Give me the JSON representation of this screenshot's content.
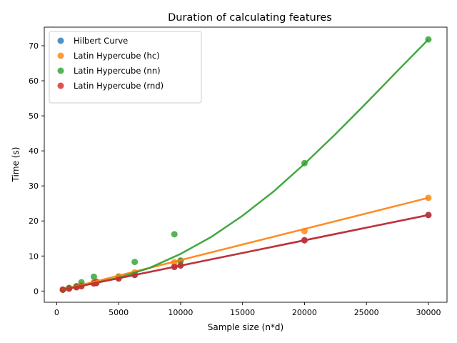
{
  "colors": {
    "hilbert": "#1f77b4",
    "hc": "#ff7f0e",
    "nn": "#2ca02c",
    "rnd": "#d62728"
  },
  "chart_data": {
    "type": "scatter",
    "title": "Duration of calculating features",
    "xlabel": "Sample size (n*d)",
    "ylabel": "Time (s)",
    "xlim": [
      -1000,
      31500
    ],
    "ylim": [
      -3.2,
      75.3
    ],
    "xticks": [
      0,
      5000,
      10000,
      15000,
      20000,
      25000,
      30000
    ],
    "yticks": [
      0,
      10,
      20,
      30,
      40,
      50,
      60,
      70
    ],
    "grid": false,
    "legend_position": "top-left",
    "series": [
      {
        "name": "Hilbert Curve",
        "color_key": "hilbert",
        "x": [
          500,
          1000,
          1600,
          2000,
          3000,
          3200,
          5000,
          6300,
          9500,
          10000,
          20000,
          30000
        ],
        "y": [
          0.4,
          0.7,
          1.1,
          1.4,
          2.2,
          2.3,
          3.6,
          4.6,
          6.9,
          7.3,
          14.5,
          21.7
        ],
        "fit": [
          [
            500,
            0.4
          ],
          [
            30000,
            21.7
          ]
        ]
      },
      {
        "name": "Latin Hypercube (hc)",
        "color_key": "hc",
        "x": [
          500,
          1000,
          1600,
          2000,
          3000,
          3200,
          5000,
          6300,
          9500,
          10000,
          20000,
          30000
        ],
        "y": [
          0.4,
          0.8,
          1.3,
          1.6,
          2.5,
          2.7,
          4.2,
          5.3,
          8.2,
          8.6,
          17.1,
          26.6
        ],
        "fit": [
          [
            500,
            0.4
          ],
          [
            30000,
            26.6
          ]
        ]
      },
      {
        "name": "Latin Hypercube (nn)",
        "color_key": "nn",
        "x": [
          500,
          1000,
          1600,
          2000,
          3000,
          3200,
          5000,
          6300,
          9500,
          10000,
          20000,
          30000
        ],
        "y": [
          0.4,
          0.9,
          1.4,
          2.5,
          4.1,
          2.6,
          3.9,
          8.3,
          16.2,
          8.7,
          36.5,
          71.8
        ],
        "fit": [
          [
            500,
            0.6
          ],
          [
            2000,
            1.5
          ],
          [
            5000,
            3.8
          ],
          [
            7500,
            6.6
          ],
          [
            10000,
            10.6
          ],
          [
            12500,
            15.5
          ],
          [
            15000,
            21.5
          ],
          [
            17500,
            28.4
          ],
          [
            20000,
            36.3
          ],
          [
            22500,
            44.8
          ],
          [
            25000,
            53.7
          ],
          [
            27500,
            62.8
          ],
          [
            30000,
            71.8
          ]
        ]
      },
      {
        "name": "Latin Hypercube (rnd)",
        "color_key": "rnd",
        "x": [
          500,
          1000,
          1600,
          2000,
          3000,
          3200,
          5000,
          6300,
          9500,
          10000,
          20000,
          30000
        ],
        "y": [
          0.4,
          0.7,
          1.1,
          1.4,
          2.2,
          2.3,
          3.6,
          4.6,
          6.9,
          7.3,
          14.5,
          21.7
        ],
        "fit": [
          [
            500,
            0.4
          ],
          [
            30000,
            21.7
          ]
        ]
      }
    ]
  }
}
